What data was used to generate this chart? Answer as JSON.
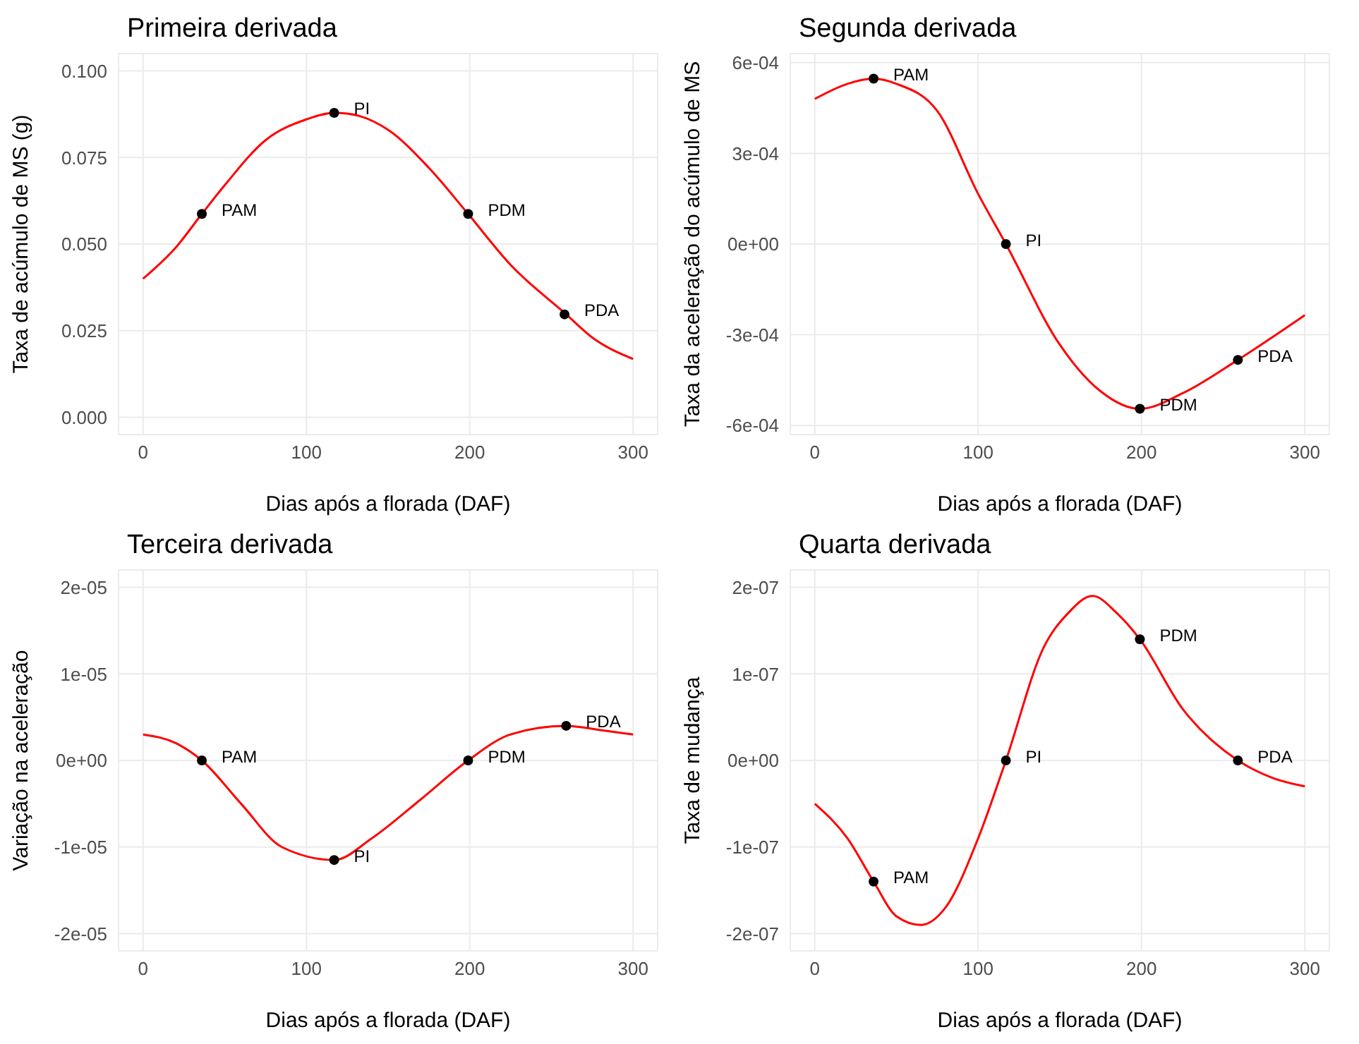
{
  "chart_data": [
    {
      "type": "line",
      "title": "Primeira derivada",
      "xlabel": "Dias após a florada (DAF)",
      "ylabel": "Taxa de acúmulo de MS (g)",
      "xlim": [
        -15,
        315
      ],
      "xticks": [
        0,
        100,
        200,
        300
      ],
      "ylim": [
        -0.005,
        0.105
      ],
      "yticks": [
        {
          "value": 0,
          "label": "0.000"
        },
        {
          "value": 0.025,
          "label": "0.025"
        },
        {
          "value": 0.05,
          "label": "0.050"
        },
        {
          "value": 0.075,
          "label": "0.075"
        },
        {
          "value": 0.1,
          "label": "0.100"
        }
      ],
      "grid": true,
      "series": [
        {
          "color": "#ff0000",
          "marker": "none",
          "x": [
            0,
            20,
            36,
            50,
            75,
            100,
            117,
            125,
            150,
            175,
            199,
            225,
            259,
            275,
            300
          ],
          "values": [
            0.04,
            0.049,
            0.0587,
            0.067,
            0.08,
            0.086,
            0.0879,
            0.0877,
            0.083,
            0.072,
            0.0587,
            0.044,
            0.0297,
            0.023,
            0.0168
          ]
        },
        {
          "type": "scatter",
          "color": "#000000",
          "marker": "circle",
          "x": [
            36,
            117,
            199,
            258
          ],
          "values": [
            0.0587,
            0.0879,
            0.0587,
            0.0297
          ]
        }
      ],
      "annotations": [
        {
          "text": "PAM",
          "x": 36,
          "y": 0.0587
        },
        {
          "text": "PI",
          "x": 117,
          "y": 0.0879
        },
        {
          "text": "PDM",
          "x": 199,
          "y": 0.0587
        },
        {
          "text": "PDA",
          "x": 258,
          "y": 0.0297
        }
      ]
    },
    {
      "type": "line",
      "title": "Segunda derivada",
      "xlabel": "Dias após a florada (DAF)",
      "ylabel": "Taxa da aceleração do acúmulo de MS",
      "xlim": [
        -15,
        315
      ],
      "xticks": [
        0,
        100,
        200,
        300
      ],
      "ylim": [
        -0.00063,
        0.00063
      ],
      "yticks": [
        {
          "value": -0.0006,
          "label": "-6e-04"
        },
        {
          "value": -0.0003,
          "label": "-3e-04"
        },
        {
          "value": 0,
          "label": "0e+00"
        },
        {
          "value": 0.0003,
          "label": "3e-04"
        },
        {
          "value": 0.0006,
          "label": "6e-04"
        }
      ],
      "grid": true,
      "series": [
        {
          "color": "#ff0000",
          "marker": "none",
          "x": [
            0,
            20,
            36,
            50,
            75,
            100,
            117,
            150,
            175,
            199,
            225,
            259,
            300
          ],
          "values": [
            0.00048,
            0.00053,
            0.000547,
            0.00053,
            0.00044,
            0.000166,
            0,
            -0.000333,
            -0.000487,
            -0.000545,
            -0.000494,
            -0.000383,
            -0.000235
          ]
        },
        {
          "type": "scatter",
          "color": "#000000",
          "marker": "circle",
          "x": [
            36,
            117,
            199,
            259
          ],
          "values": [
            0.000547,
            0,
            -0.000545,
            -0.000383
          ]
        }
      ],
      "annotations": [
        {
          "text": "PAM",
          "x": 36,
          "y": 0.000547
        },
        {
          "text": "PI",
          "x": 117,
          "y": 0
        },
        {
          "text": "PDM",
          "x": 199,
          "y": -0.000545
        },
        {
          "text": "PDA",
          "x": 259,
          "y": -0.000383
        }
      ]
    },
    {
      "type": "line",
      "title": "Terceira derivada",
      "xlabel": "Dias após a florada (DAF)",
      "ylabel": "Variação na aceleração",
      "xlim": [
        -15,
        315
      ],
      "xticks": [
        0,
        100,
        200,
        300
      ],
      "ylim": [
        -2.2e-05,
        2.2e-05
      ],
      "yticks": [
        {
          "value": -2e-05,
          "label": "-2e-05"
        },
        {
          "value": -1e-05,
          "label": "-1e-05"
        },
        {
          "value": 0,
          "label": "0e+00"
        },
        {
          "value": 1e-05,
          "label": "1e-05"
        },
        {
          "value": 2e-05,
          "label": "2e-05"
        }
      ],
      "grid": true,
      "series": [
        {
          "color": "#ff0000",
          "marker": "none",
          "x": [
            0,
            20,
            36,
            60,
            85,
            117,
            140,
            170,
            199,
            225,
            259,
            280,
            300
          ],
          "values": [
            3e-06,
            2e-06,
            0,
            -5e-06,
            -1e-05,
            -1.15e-05,
            -9e-06,
            -4.5e-06,
            0,
            3e-06,
            4e-06,
            3.5e-06,
            3e-06
          ]
        },
        {
          "type": "scatter",
          "color": "#000000",
          "marker": "circle",
          "x": [
            36,
            117,
            199,
            259
          ],
          "values": [
            0,
            -1.15e-05,
            0,
            4e-06
          ]
        }
      ],
      "annotations": [
        {
          "text": "PAM",
          "x": 36,
          "y": 0
        },
        {
          "text": "PI",
          "x": 117,
          "y": -1.15e-05
        },
        {
          "text": "PDM",
          "x": 199,
          "y": 0
        },
        {
          "text": "PDA",
          "x": 259,
          "y": 4e-06
        }
      ]
    },
    {
      "type": "line",
      "title": "Quarta derivada",
      "xlabel": "Dias após a florada (DAF)",
      "ylabel": "Taxa de mudança",
      "xlim": [
        -15,
        315
      ],
      "xticks": [
        0,
        100,
        200,
        300
      ],
      "ylim": [
        -2.2e-07,
        2.2e-07
      ],
      "yticks": [
        {
          "value": -2e-07,
          "label": "-2e-07"
        },
        {
          "value": -1e-07,
          "label": "-1e-07"
        },
        {
          "value": 0,
          "label": "0e+00"
        },
        {
          "value": 1e-07,
          "label": "1e-07"
        },
        {
          "value": 2e-07,
          "label": "2e-07"
        }
      ],
      "grid": true,
      "series": [
        {
          "color": "#ff0000",
          "marker": "none",
          "x": [
            0,
            20,
            36,
            50,
            65,
            80,
            100,
            117,
            140,
            155,
            170,
            185,
            199,
            225,
            259,
            280,
            300
          ],
          "values": [
            -5e-08,
            -9e-08,
            -1.4e-07,
            -1.8e-07,
            -1.9e-07,
            -1.7e-07,
            -9e-08,
            0,
            1.3e-07,
            1.7e-07,
            1.9e-07,
            1.7e-07,
            1.4e-07,
            6e-08,
            0,
            -2e-08,
            -3e-08
          ]
        },
        {
          "type": "scatter",
          "color": "#000000",
          "marker": "circle",
          "x": [
            36,
            117,
            199,
            259
          ],
          "values": [
            -1.4e-07,
            0,
            1.4e-07,
            0
          ]
        }
      ],
      "annotations": [
        {
          "text": "PAM",
          "x": 36,
          "y": -1.4e-07
        },
        {
          "text": "PI",
          "x": 117,
          "y": 0
        },
        {
          "text": "PDM",
          "x": 199,
          "y": 1.4e-07
        },
        {
          "text": "PDA",
          "x": 259,
          "y": 0
        }
      ]
    }
  ]
}
